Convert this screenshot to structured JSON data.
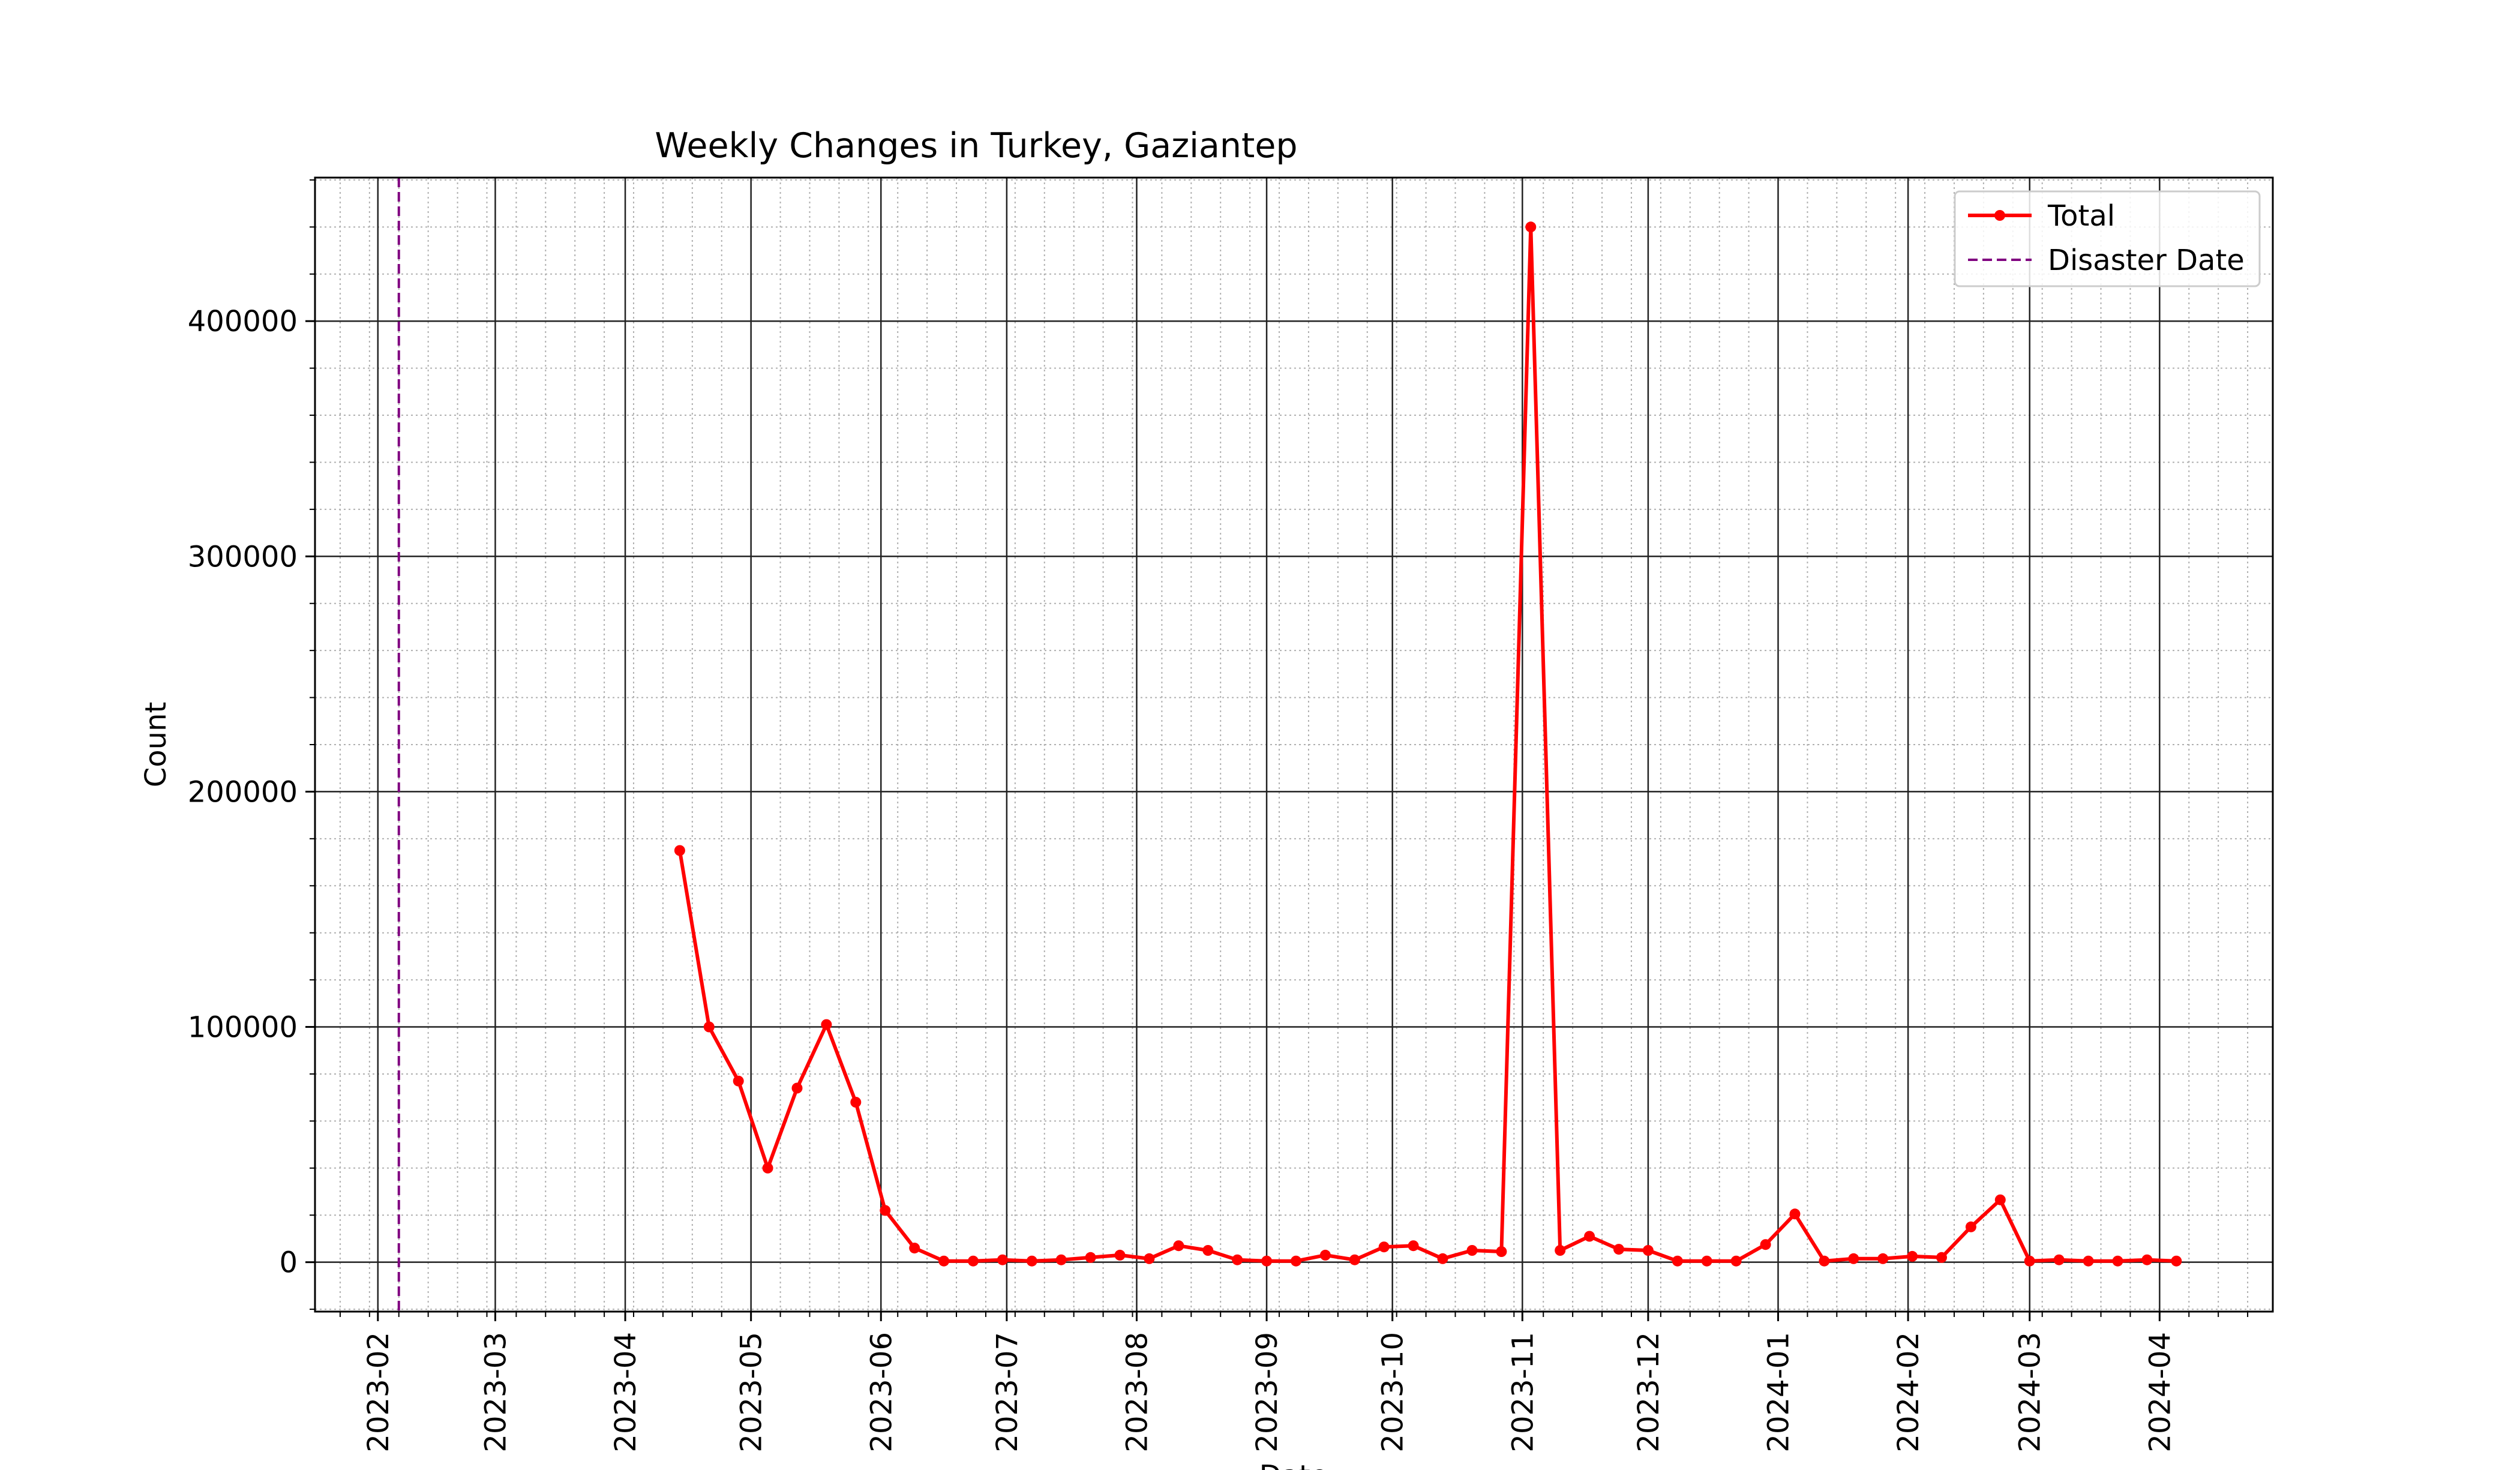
{
  "chart_data": {
    "type": "line",
    "title": "Weekly Changes in Turkey, Gaziantep",
    "xlabel": "Date",
    "ylabel": "Count",
    "ylim": [
      -21000,
      461000
    ],
    "xlim": [
      "2023-01-17",
      "2024-04-28"
    ],
    "x_ticks": [
      "2023-02",
      "2023-03",
      "2023-04",
      "2023-05",
      "2023-06",
      "2023-07",
      "2023-08",
      "2023-09",
      "2023-10",
      "2023-11",
      "2023-12",
      "2024-01",
      "2024-02",
      "2024-03",
      "2024-04"
    ],
    "y_ticks": [
      0,
      100000,
      200000,
      300000,
      400000
    ],
    "grid": "major and minor",
    "legend_position": "top-right",
    "series": [
      {
        "name": "Total",
        "color": "#ff0000",
        "x": [
          "2023-04-14",
          "2023-04-21",
          "2023-04-28",
          "2023-05-05",
          "2023-05-12",
          "2023-05-19",
          "2023-05-26",
          "2023-06-02",
          "2023-06-09",
          "2023-06-16",
          "2023-06-23",
          "2023-06-30",
          "2023-07-07",
          "2023-07-14",
          "2023-07-21",
          "2023-07-28",
          "2023-08-04",
          "2023-08-11",
          "2023-08-18",
          "2023-08-25",
          "2023-09-01",
          "2023-09-08",
          "2023-09-15",
          "2023-09-22",
          "2023-09-29",
          "2023-10-06",
          "2023-10-13",
          "2023-10-20",
          "2023-10-27",
          "2023-11-03",
          "2023-11-10",
          "2023-11-17",
          "2023-11-24",
          "2023-12-01",
          "2023-12-08",
          "2023-12-15",
          "2023-12-22",
          "2023-12-29",
          "2024-01-05",
          "2024-01-12",
          "2024-01-19",
          "2024-01-26",
          "2024-02-02",
          "2024-02-09",
          "2024-02-16",
          "2024-02-23",
          "2024-03-01",
          "2024-03-08",
          "2024-03-15",
          "2024-03-22",
          "2024-03-29",
          "2024-04-05"
        ],
        "y": [
          175000,
          100000,
          77000,
          40000,
          74000,
          101000,
          68000,
          22000,
          6000,
          500,
          500,
          1000,
          500,
          1000,
          2000,
          3000,
          1500,
          7000,
          5000,
          1000,
          500,
          500,
          3000,
          1000,
          6500,
          7000,
          1500,
          5000,
          4500,
          440000,
          5000,
          11000,
          5500,
          5000,
          500,
          500,
          500,
          7500,
          20500,
          500,
          1500,
          1500,
          2500,
          2000,
          15000,
          26500,
          500,
          1000,
          500,
          500,
          1000,
          500
        ]
      }
    ],
    "markers": [
      {
        "name": "Disaster Date",
        "x": "2023-02-06",
        "color": "#800080",
        "style": "dashed"
      }
    ]
  }
}
